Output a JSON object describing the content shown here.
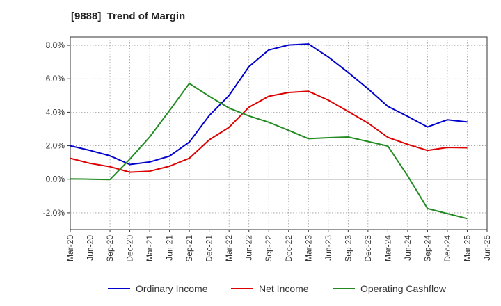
{
  "chart_data": {
    "type": "line",
    "title": "[9888]  Trend of Margin",
    "xlabel": "",
    "ylabel": "",
    "categories": [
      "Mar-20",
      "Jun-20",
      "Sep-20",
      "Dec-20",
      "Mar-21",
      "Jun-21",
      "Sep-21",
      "Dec-21",
      "Mar-22",
      "Jun-22",
      "Sep-22",
      "Dec-22",
      "Mar-23",
      "Jun-23",
      "Sep-23",
      "Dec-23",
      "Mar-24",
      "Jun-24",
      "Sep-24",
      "Dec-24",
      "Mar-25",
      "Jun-25"
    ],
    "ylim": [
      -3.0,
      8.5
    ],
    "yticks": [
      -2.0,
      0.0,
      2.0,
      4.0,
      6.0,
      8.0
    ],
    "ytick_labels": [
      "-2.0%",
      "0.0%",
      "2.0%",
      "4.0%",
      "6.0%",
      "8.0%"
    ],
    "grid": true,
    "legend_position": "bottom",
    "series": [
      {
        "name": "Ordinary Income",
        "color": "#0000cc",
        "values": [
          2.0,
          1.72,
          1.4,
          0.88,
          1.03,
          1.38,
          2.22,
          3.8,
          5.0,
          6.72,
          7.72,
          8.02,
          8.08,
          7.3,
          6.38,
          5.4,
          4.35,
          3.75,
          3.12,
          3.55,
          3.42,
          null
        ]
      },
      {
        "name": "Net Income",
        "color": "#dd0000",
        "values": [
          1.25,
          0.95,
          0.75,
          0.42,
          0.48,
          0.78,
          1.25,
          2.35,
          3.1,
          4.3,
          4.95,
          5.18,
          5.25,
          4.72,
          4.05,
          3.35,
          2.5,
          2.08,
          1.72,
          1.9,
          1.88,
          null
        ]
      },
      {
        "name": "Operating Cashflow",
        "color": "#228b22",
        "values": [
          0.02,
          0.0,
          -0.02,
          1.2,
          2.52,
          4.1,
          5.72,
          4.95,
          4.25,
          3.78,
          3.4,
          2.92,
          2.42,
          2.48,
          2.52,
          2.25,
          1.98,
          0.2,
          -1.75,
          -2.05,
          -2.35,
          null
        ]
      }
    ]
  }
}
